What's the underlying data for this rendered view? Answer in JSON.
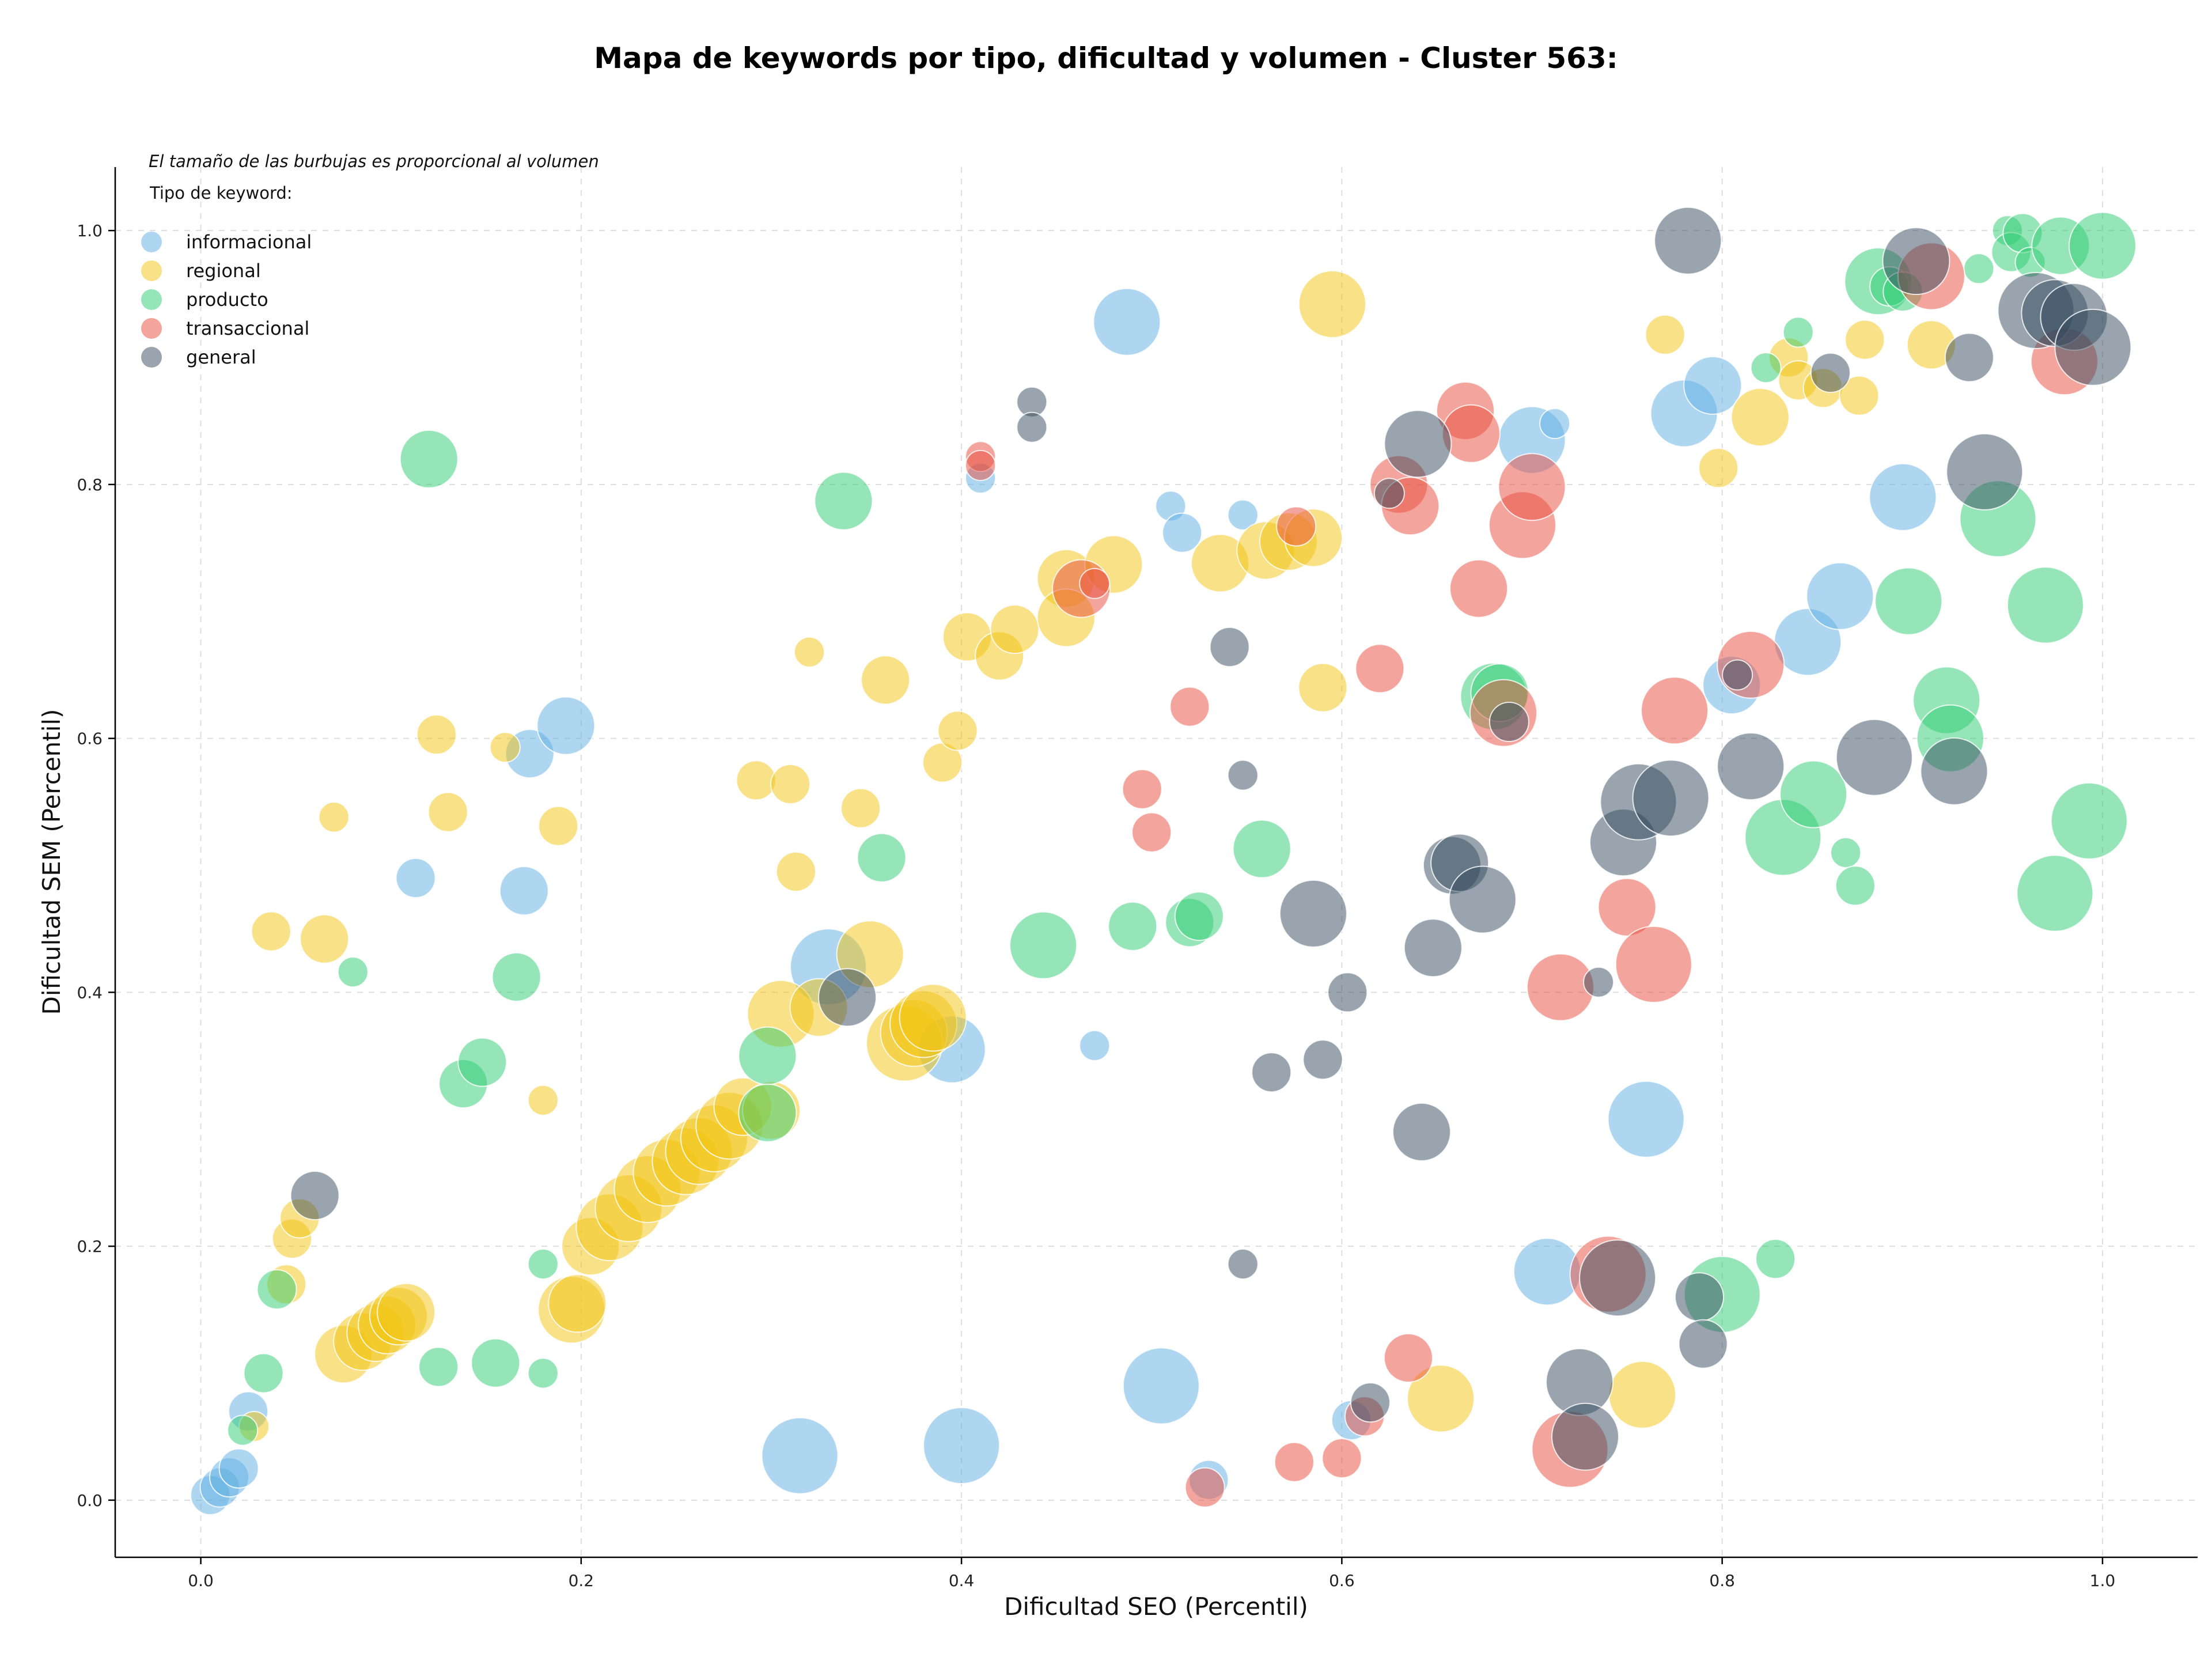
{
  "colors": {
    "informacional": "#5dade2",
    "regional": "#f1c40f",
    "producto": "#2ecc71",
    "transaccional": "#e74c3c",
    "general": "#34495e"
  },
  "chart_data": {
    "type": "scatter",
    "title": "Mapa de keywords por tipo, dificultad y volumen - Cluster 563:",
    "xlabel": "Dificultad SEO (Percentil)",
    "ylabel": "Dificultad SEM (Percentil)",
    "xlim": [
      -0.045,
      1.05
    ],
    "ylim": [
      -0.045,
      1.05
    ],
    "xticks": [
      "0.0",
      "0.2",
      "0.4",
      "0.6",
      "0.8",
      "1.0"
    ],
    "yticks": [
      "0.0",
      "0.2",
      "0.4",
      "0.6",
      "0.8",
      "1.0"
    ],
    "grid": true,
    "legend_position": "top-left",
    "note": "El tamaño de las burbujas es proporcional al volumen",
    "legend_title": "Tipo de keyword:",
    "series": [
      {
        "name": "informacional",
        "color": "#5dade2",
        "points": [
          [
            0.005,
            0.004,
            2
          ],
          [
            0.01,
            0.01,
            2
          ],
          [
            0.015,
            0.018,
            2
          ],
          [
            0.02,
            0.025,
            2
          ],
          [
            0.025,
            0.07,
            2
          ],
          [
            0.113,
            0.49,
            2
          ],
          [
            0.17,
            0.48,
            3
          ],
          [
            0.173,
            0.588,
            3
          ],
          [
            0.192,
            0.61,
            4
          ],
          [
            0.315,
            0.035,
            6
          ],
          [
            0.33,
            0.42,
            6
          ],
          [
            0.395,
            0.355,
            5
          ],
          [
            0.4,
            0.043,
            6
          ],
          [
            0.41,
            0.805,
            1
          ],
          [
            0.47,
            0.358,
            1
          ],
          [
            0.487,
            0.928,
            5
          ],
          [
            0.505,
            0.09,
            6
          ],
          [
            0.51,
            0.783,
            1
          ],
          [
            0.516,
            0.762,
            2
          ],
          [
            0.53,
            0.016,
            2
          ],
          [
            0.548,
            0.776,
            1
          ],
          [
            0.605,
            0.063,
            2
          ],
          [
            0.7,
            0.835,
            5
          ],
          [
            0.712,
            0.848,
            1
          ],
          [
            0.708,
            0.18,
            5
          ],
          [
            0.76,
            0.3,
            6
          ],
          [
            0.78,
            0.856,
            5
          ],
          [
            0.795,
            0.878,
            4
          ],
          [
            0.805,
            0.642,
            4
          ],
          [
            0.845,
            0.676,
            5
          ],
          [
            0.862,
            0.712,
            5
          ],
          [
            0.895,
            0.79,
            5
          ]
        ]
      },
      {
        "name": "regional",
        "color": "#f1c40f",
        "points": [
          [
            0.028,
            0.058,
            1
          ],
          [
            0.037,
            0.448,
            2
          ],
          [
            0.045,
            0.17,
            2
          ],
          [
            0.048,
            0.206,
            2
          ],
          [
            0.052,
            0.222,
            2
          ],
          [
            0.065,
            0.442,
            3
          ],
          [
            0.07,
            0.538,
            1
          ],
          [
            0.075,
            0.115,
            4
          ],
          [
            0.085,
            0.125,
            4
          ],
          [
            0.092,
            0.132,
            4
          ],
          [
            0.098,
            0.138,
            4
          ],
          [
            0.104,
            0.145,
            4
          ],
          [
            0.108,
            0.148,
            4
          ],
          [
            0.124,
            0.603,
            2
          ],
          [
            0.13,
            0.542,
            2
          ],
          [
            0.16,
            0.593,
            1
          ],
          [
            0.18,
            0.315,
            1
          ],
          [
            0.188,
            0.531,
            2
          ],
          [
            0.195,
            0.15,
            5
          ],
          [
            0.198,
            0.155,
            4
          ],
          [
            0.205,
            0.2,
            4
          ],
          [
            0.215,
            0.215,
            5
          ],
          [
            0.225,
            0.23,
            5
          ],
          [
            0.235,
            0.245,
            5
          ],
          [
            0.245,
            0.258,
            5
          ],
          [
            0.255,
            0.267,
            5
          ],
          [
            0.262,
            0.275,
            5
          ],
          [
            0.27,
            0.285,
            5
          ],
          [
            0.278,
            0.295,
            5
          ],
          [
            0.285,
            0.31,
            4
          ],
          [
            0.292,
            0.567,
            2
          ],
          [
            0.3,
            0.307,
            4
          ],
          [
            0.305,
            0.383,
            5
          ],
          [
            0.31,
            0.564,
            2
          ],
          [
            0.313,
            0.495,
            2
          ],
          [
            0.32,
            0.668,
            1
          ],
          [
            0.325,
            0.388,
            4
          ],
          [
            0.347,
            0.545,
            2
          ],
          [
            0.352,
            0.43,
            5
          ],
          [
            0.36,
            0.646,
            3
          ],
          [
            0.37,
            0.36,
            6
          ],
          [
            0.375,
            0.368,
            5
          ],
          [
            0.38,
            0.375,
            5
          ],
          [
            0.385,
            0.38,
            5
          ],
          [
            0.39,
            0.581,
            2
          ],
          [
            0.398,
            0.606,
            2
          ],
          [
            0.403,
            0.68,
            3
          ],
          [
            0.42,
            0.665,
            3
          ],
          [
            0.428,
            0.686,
            3
          ],
          [
            0.455,
            0.726,
            4
          ],
          [
            0.455,
            0.695,
            4
          ],
          [
            0.48,
            0.737,
            4
          ],
          [
            0.536,
            0.738,
            4
          ],
          [
            0.56,
            0.748,
            4
          ],
          [
            0.572,
            0.755,
            4
          ],
          [
            0.585,
            0.758,
            4
          ],
          [
            0.59,
            0.64,
            3
          ],
          [
            0.595,
            0.942,
            5
          ],
          [
            0.652,
            0.08,
            5
          ],
          [
            0.758,
            0.083,
            5
          ],
          [
            0.77,
            0.918,
            2
          ],
          [
            0.798,
            0.813,
            2
          ],
          [
            0.82,
            0.853,
            4
          ],
          [
            0.835,
            0.9,
            2
          ],
          [
            0.84,
            0.882,
            2
          ],
          [
            0.853,
            0.876,
            2
          ],
          [
            0.875,
            0.914,
            2
          ],
          [
            0.872,
            0.87,
            2
          ],
          [
            0.91,
            0.91,
            3
          ]
        ]
      },
      {
        "name": "producto",
        "color": "#2ecc71",
        "points": [
          [
            0.022,
            0.055,
            1
          ],
          [
            0.033,
            0.1,
            2
          ],
          [
            0.04,
            0.166,
            2
          ],
          [
            0.08,
            0.416,
            1
          ],
          [
            0.12,
            0.82,
            4
          ],
          [
            0.125,
            0.105,
            2
          ],
          [
            0.138,
            0.328,
            3
          ],
          [
            0.148,
            0.345,
            3
          ],
          [
            0.155,
            0.108,
            3
          ],
          [
            0.166,
            0.412,
            3
          ],
          [
            0.18,
            0.186,
            1
          ],
          [
            0.18,
            0.1,
            1
          ],
          [
            0.298,
            0.35,
            4
          ],
          [
            0.298,
            0.305,
            4
          ],
          [
            0.338,
            0.787,
            4
          ],
          [
            0.358,
            0.506,
            3
          ],
          [
            0.443,
            0.437,
            5
          ],
          [
            0.49,
            0.452,
            3
          ],
          [
            0.52,
            0.455,
            3
          ],
          [
            0.525,
            0.46,
            3
          ],
          [
            0.558,
            0.513,
            4
          ],
          [
            0.68,
            0.633,
            5
          ],
          [
            0.683,
            0.636,
            4
          ],
          [
            0.8,
            0.162,
            6
          ],
          [
            0.823,
            0.892,
            1
          ],
          [
            0.828,
            0.19,
            2
          ],
          [
            0.832,
            0.522,
            6
          ],
          [
            0.84,
            0.92,
            1
          ],
          [
            0.848,
            0.556,
            5
          ],
          [
            0.865,
            0.51,
            1
          ],
          [
            0.87,
            0.484,
            2
          ],
          [
            0.882,
            0.96,
            5
          ],
          [
            0.888,
            0.956,
            2
          ],
          [
            0.895,
            0.952,
            2
          ],
          [
            0.898,
            0.708,
            5
          ],
          [
            0.918,
            0.63,
            5
          ],
          [
            0.92,
            0.6,
            5
          ],
          [
            0.935,
            0.97,
            1
          ],
          [
            0.945,
            0.773,
            6
          ],
          [
            0.95,
            1.0,
            1
          ],
          [
            0.952,
            0.983,
            2
          ],
          [
            0.958,
            0.998,
            2
          ],
          [
            0.962,
            0.975,
            1
          ],
          [
            0.97,
            0.705,
            6
          ],
          [
            0.975,
            0.478,
            6
          ],
          [
            0.978,
            0.988,
            4
          ],
          [
            0.993,
            0.535,
            6
          ],
          [
            1.0,
            0.988,
            5
          ]
        ]
      },
      {
        "name": "transaccional",
        "color": "#e74c3c",
        "points": [
          [
            0.41,
            0.822,
            1
          ],
          [
            0.41,
            0.815,
            1
          ],
          [
            0.463,
            0.718,
            4
          ],
          [
            0.47,
            0.722,
            1
          ],
          [
            0.495,
            0.56,
            2
          ],
          [
            0.5,
            0.526,
            2
          ],
          [
            0.52,
            0.625,
            2
          ],
          [
            0.528,
            0.01,
            2
          ],
          [
            0.575,
            0.03,
            2
          ],
          [
            0.576,
            0.767,
            2
          ],
          [
            0.6,
            0.033,
            2
          ],
          [
            0.612,
            0.066,
            2
          ],
          [
            0.62,
            0.655,
            3
          ],
          [
            0.63,
            0.8,
            4
          ],
          [
            0.635,
            0.112,
            3
          ],
          [
            0.636,
            0.783,
            4
          ],
          [
            0.665,
            0.858,
            4
          ],
          [
            0.668,
            0.84,
            4
          ],
          [
            0.672,
            0.718,
            4
          ],
          [
            0.685,
            0.62,
            5
          ],
          [
            0.695,
            0.768,
            5
          ],
          [
            0.7,
            0.798,
            5
          ],
          [
            0.715,
            0.404,
            5
          ],
          [
            0.72,
            0.04,
            6
          ],
          [
            0.74,
            0.178,
            6
          ],
          [
            0.75,
            0.467,
            4
          ],
          [
            0.764,
            0.422,
            6
          ],
          [
            0.775,
            0.622,
            5
          ],
          [
            0.815,
            0.658,
            5
          ],
          [
            0.91,
            0.964,
            5
          ],
          [
            0.98,
            0.897,
            5
          ]
        ]
      },
      {
        "name": "general",
        "color": "#34495e",
        "points": [
          [
            0.06,
            0.24,
            3
          ],
          [
            0.34,
            0.396,
            4
          ],
          [
            0.437,
            0.865,
            1
          ],
          [
            0.437,
            0.845,
            1
          ],
          [
            0.541,
            0.672,
            2
          ],
          [
            0.548,
            0.571,
            1
          ],
          [
            0.548,
            0.186,
            1
          ],
          [
            0.563,
            0.337,
            2
          ],
          [
            0.585,
            0.462,
            5
          ],
          [
            0.59,
            0.347,
            2
          ],
          [
            0.603,
            0.4,
            2
          ],
          [
            0.615,
            0.077,
            2
          ],
          [
            0.625,
            0.793,
            1
          ],
          [
            0.64,
            0.832,
            5
          ],
          [
            0.642,
            0.29,
            4
          ],
          [
            0.648,
            0.435,
            4
          ],
          [
            0.658,
            0.5,
            4
          ],
          [
            0.662,
            0.502,
            4
          ],
          [
            0.674,
            0.473,
            5
          ],
          [
            0.688,
            0.613,
            2
          ],
          [
            0.725,
            0.093,
            5
          ],
          [
            0.728,
            0.05,
            5
          ],
          [
            0.735,
            0.408,
            1
          ],
          [
            0.745,
            0.175,
            6
          ],
          [
            0.748,
            0.518,
            5
          ],
          [
            0.756,
            0.55,
            6
          ],
          [
            0.773,
            0.553,
            6
          ],
          [
            0.782,
            0.992,
            5
          ],
          [
            0.788,
            0.16,
            3
          ],
          [
            0.79,
            0.123,
            3
          ],
          [
            0.808,
            0.65,
            1
          ],
          [
            0.815,
            0.578,
            5
          ],
          [
            0.857,
            0.888,
            2
          ],
          [
            0.88,
            0.585,
            6
          ],
          [
            0.902,
            0.976,
            5
          ],
          [
            0.922,
            0.574,
            5
          ],
          [
            0.93,
            0.9,
            3
          ],
          [
            0.938,
            0.81,
            6
          ],
          [
            0.965,
            0.937,
            6
          ],
          [
            0.975,
            0.935,
            5
          ],
          [
            0.985,
            0.932,
            5
          ],
          [
            0.995,
            0.908,
            6
          ]
        ]
      }
    ]
  }
}
